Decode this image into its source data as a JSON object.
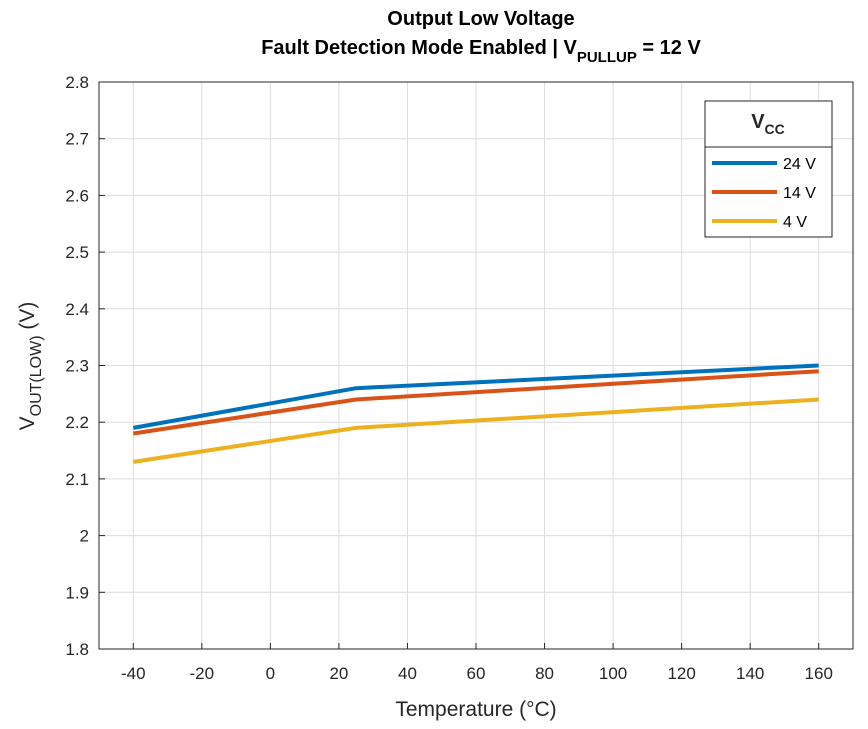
{
  "chart_data": {
    "type": "line",
    "title_line1": "Output Low Voltage",
    "title_line2_prefix": "Fault Detection Mode Enabled | V",
    "title_line2_sub": "PULLUP",
    "title_line2_suffix": " = 12 V",
    "xlabel": "Temperature (°C)",
    "ylabel_main": "V",
    "ylabel_sub": "OUT(LOW)",
    "ylabel_suffix": " (V)",
    "xlim": [
      -50,
      170
    ],
    "ylim": [
      1.8,
      2.8
    ],
    "xticks": [
      -40,
      -20,
      0,
      20,
      40,
      60,
      80,
      100,
      120,
      140,
      160
    ],
    "yticks": [
      1.8,
      1.9,
      2.0,
      2.1,
      2.2,
      2.3,
      2.4,
      2.5,
      2.6,
      2.7,
      2.8
    ],
    "ytick_labels": [
      "1.8",
      "1.9",
      "2",
      "2.1",
      "2.2",
      "2.3",
      "2.4",
      "2.5",
      "2.6",
      "2.7",
      "2.8"
    ],
    "grid": true,
    "legend": {
      "title_main": "V",
      "title_sub": "CC",
      "location": "top-right"
    },
    "series": [
      {
        "name": "24 V",
        "color": "#0072BD",
        "x": [
          -40,
          25,
          160
        ],
        "y": [
          2.19,
          2.26,
          2.3
        ]
      },
      {
        "name": "14 V",
        "color": "#D95319",
        "x": [
          -40,
          25,
          160
        ],
        "y": [
          2.18,
          2.24,
          2.29
        ]
      },
      {
        "name": "4 V",
        "color": "#EDB120",
        "x": [
          -40,
          25,
          160
        ],
        "y": [
          2.13,
          2.19,
          2.24
        ]
      }
    ]
  }
}
